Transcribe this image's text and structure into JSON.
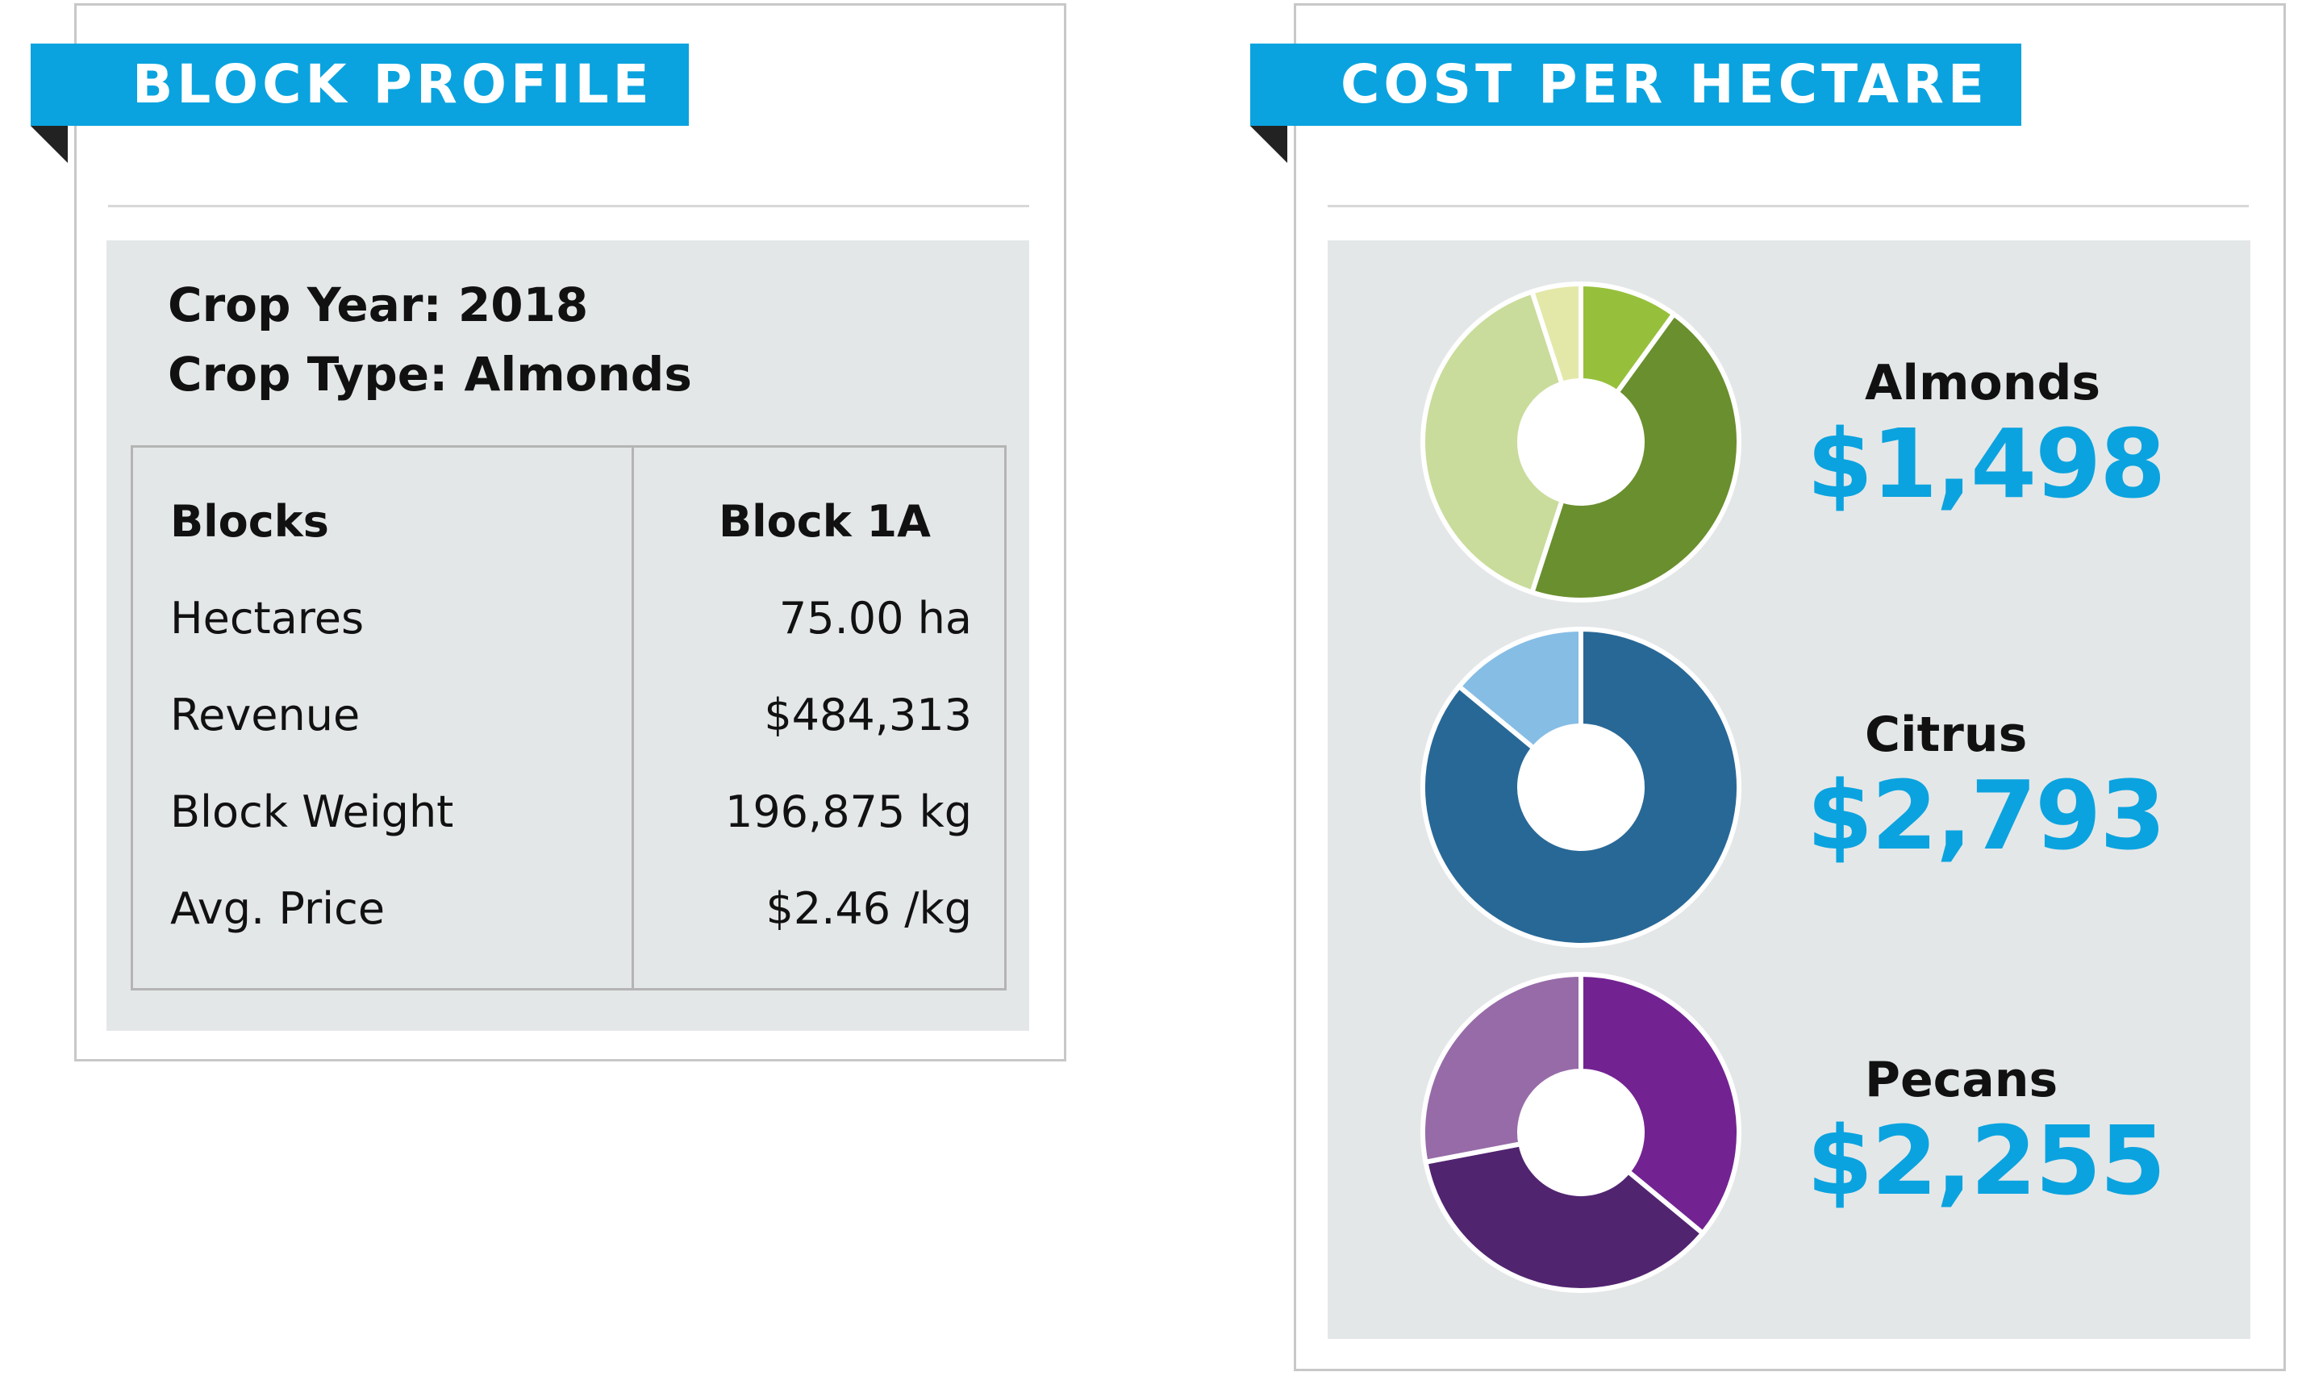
{
  "block_profile": {
    "title": "BLOCK PROFILE",
    "crop_year": "Crop Year: 2018",
    "crop_type": "Crop Type: Almonds",
    "table": {
      "header_label": "Blocks",
      "header_value": "Block 1A",
      "rows": [
        {
          "label": "Hectares",
          "value": "75.00 ha"
        },
        {
          "label": "Revenue",
          "value": "$484,313"
        },
        {
          "label": "Block Weight",
          "value": "196,875 kg"
        },
        {
          "label": "Avg. Price",
          "value": "$2.46 /kg"
        }
      ]
    }
  },
  "cost_per_hectare": {
    "title": "COST PER HECTARE",
    "crops": [
      {
        "name": "Almonds",
        "cost": "$1,498"
      },
      {
        "name": "Citrus",
        "cost": "$2,793"
      },
      {
        "name": "Pecans",
        "cost": "$2,255"
      }
    ]
  },
  "chart_data": [
    {
      "type": "pie",
      "categories": [
        "",
        "",
        "",
        ""
      ],
      "values": [
        10,
        45,
        40,
        5
      ],
      "colors": [
        "#96c03b",
        "#6a8f2e",
        "#c9dc9b",
        "#e3e8a9"
      ]
    },
    {
      "type": "pie",
      "categories": [
        "",
        ""
      ],
      "values": [
        86,
        14
      ],
      "colors": [
        "#286896",
        "#86bde5"
      ]
    },
    {
      "type": "pie",
      "categories": [
        "",
        "",
        ""
      ],
      "values": [
        36,
        36,
        28
      ],
      "colors": [
        "#722391",
        "#512470",
        "#976ba8"
      ]
    }
  ]
}
